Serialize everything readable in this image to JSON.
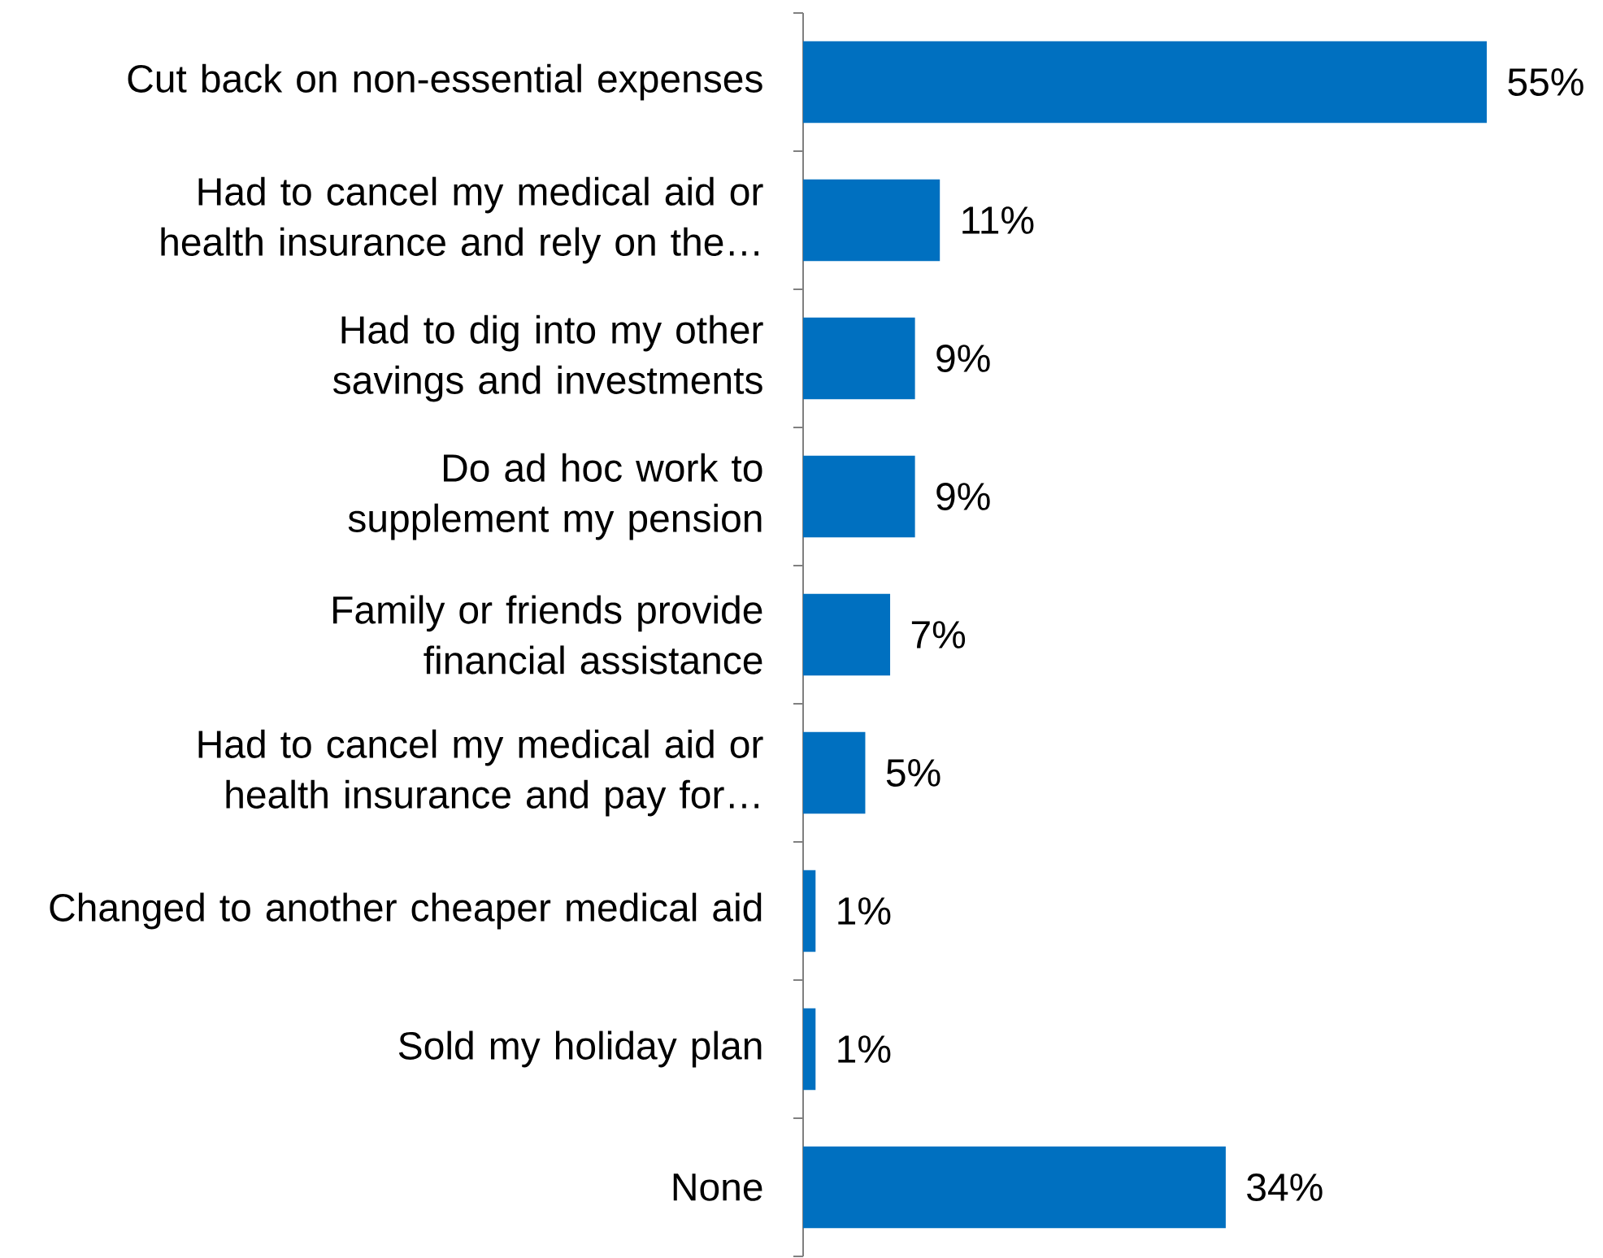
{
  "chart_data": {
    "type": "bar",
    "orientation": "horizontal",
    "categories": [
      "Cut back on non-essential expenses",
      "Had to cancel my medical aid or health insurance and rely on the…",
      "Had to dig into my other savings and investments",
      "Do ad hoc work to supplement my pension",
      "Family or friends provide financial assistance",
      "Had to cancel my medical aid or health insurance and pay for…",
      "Changed to another cheaper medical aid",
      "Sold my holiday plan",
      "None"
    ],
    "values": [
      55,
      11,
      9,
      9,
      7,
      5,
      1,
      1,
      34
    ],
    "value_labels": [
      "55%",
      "11%",
      "9%",
      "9%",
      "7%",
      "5%",
      "1%",
      "1%",
      "34%"
    ],
    "color": "#0070c0"
  }
}
